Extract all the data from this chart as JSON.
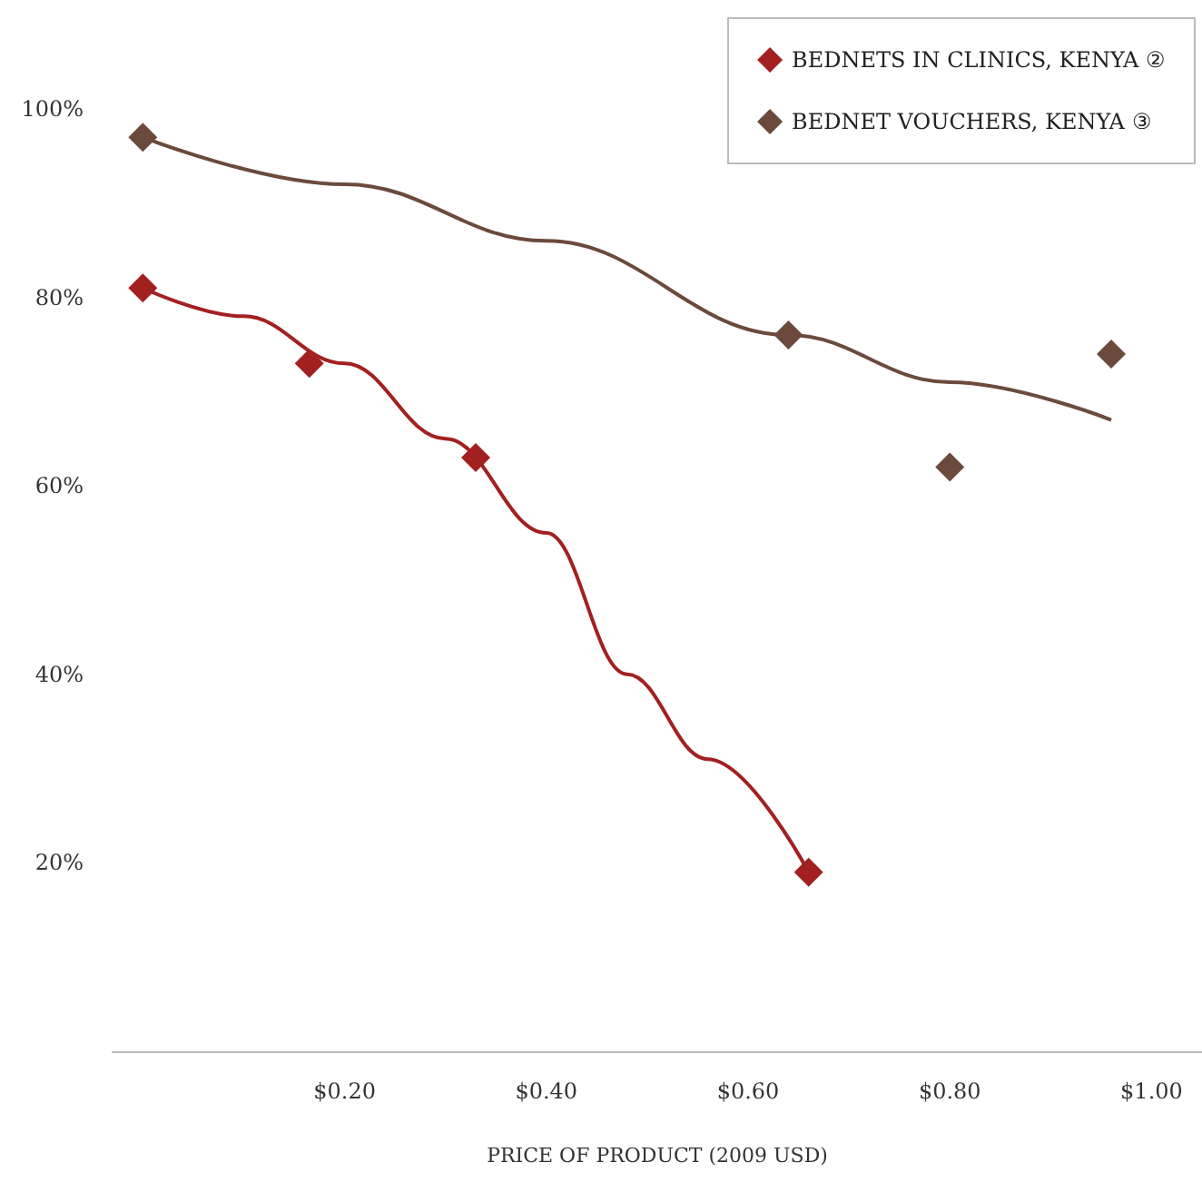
{
  "chart_data": {
    "type": "scatter",
    "xlabel": "PRICE OF PRODUCT (2009 USD)",
    "xlim": [
      -0.03,
      1.05
    ],
    "ylim": [
      0,
      100
    ],
    "xticks": [
      {
        "value": 0.2,
        "label": "$0.20"
      },
      {
        "value": 0.4,
        "label": "$0.40"
      },
      {
        "value": 0.6,
        "label": "$0.60"
      },
      {
        "value": 0.8,
        "label": "$0.80"
      },
      {
        "value": 1.0,
        "label": "$1.00"
      }
    ],
    "yticks": [
      {
        "value": 20,
        "label": "20%"
      },
      {
        "value": 40,
        "label": "40%"
      },
      {
        "value": 60,
        "label": "60%"
      },
      {
        "value": 80,
        "label": "80%"
      },
      {
        "value": 100,
        "label": "100%"
      }
    ],
    "grid": false,
    "legend": "top right",
    "marker": "diamond",
    "series": [
      {
        "name": "BEDNETS IN CLINICS, KENYA ②",
        "color": "#a32020",
        "x": [
          0,
          0.165,
          0.33,
          0.66
        ],
        "values": [
          81,
          73,
          63,
          19
        ]
      },
      {
        "name": "BEDNET VOUCHERS, KENYA ③",
        "color": "#6b4a3c",
        "x": [
          0,
          0.64,
          0.8,
          0.96
        ],
        "values": [
          97,
          76,
          62,
          74
        ]
      },
      {
        "type": "line",
        "marker": "none",
        "color": "#a32020",
        "x": [
          0,
          0.1,
          0.2,
          0.3,
          0.4,
          0.48,
          0.56,
          0.66
        ],
        "values": [
          81,
          78,
          73,
          65,
          55,
          40,
          31,
          19
        ]
      },
      {
        "type": "line",
        "marker": "none",
        "color": "#6b4a3c",
        "x": [
          0,
          0.2,
          0.4,
          0.64,
          0.8,
          0.96
        ],
        "values": [
          97,
          92,
          86,
          76,
          71,
          67
        ]
      }
    ]
  }
}
